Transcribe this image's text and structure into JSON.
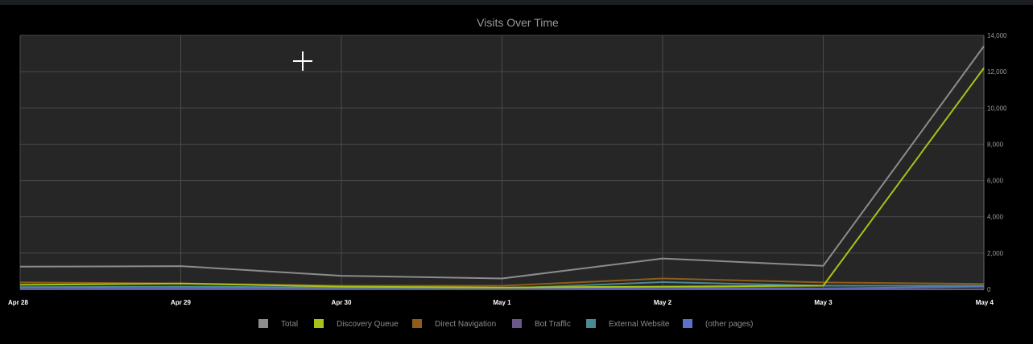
{
  "chart_data": {
    "type": "line",
    "title": "Visits Over Time",
    "xlabel": "",
    "ylabel": "",
    "categories": [
      "Apr 28",
      "Apr 29",
      "Apr 30",
      "May 1",
      "May 2",
      "May 3",
      "May 4"
    ],
    "ylim": [
      0,
      14000
    ],
    "yticks": [
      0,
      2000,
      4000,
      6000,
      8000,
      10000,
      12000,
      14000
    ],
    "ytick_labels": [
      "0",
      "2,000",
      "4,000",
      "6,000",
      "8,000",
      "10,000",
      "12,000",
      "14,000"
    ],
    "y_axis_side": "right",
    "grid": true,
    "legend_position": "bottom",
    "series": [
      {
        "name": "Total",
        "color": "#8c8c8c",
        "values": [
          1250,
          1280,
          750,
          600,
          1700,
          1300,
          13400
        ]
      },
      {
        "name": "Discovery Queue",
        "color": "#a6c319",
        "values": [
          250,
          320,
          150,
          100,
          150,
          200,
          12200
        ]
      },
      {
        "name": "Direct Navigation",
        "color": "#8e5d1a",
        "values": [
          380,
          330,
          200,
          200,
          600,
          380,
          300
        ]
      },
      {
        "name": "Bot Traffic",
        "color": "#6a5888",
        "values": [
          0,
          0,
          0,
          0,
          0,
          0,
          0
        ]
      },
      {
        "name": "External Website",
        "color": "#4a8a94",
        "values": [
          120,
          150,
          100,
          50,
          400,
          200,
          200
        ]
      },
      {
        "name": "(other pages)",
        "color": "#5b6fcb",
        "values": [
          30,
          60,
          40,
          40,
          100,
          50,
          150
        ]
      }
    ]
  },
  "colors": {
    "page_background": "#000000",
    "plot_background": "#262626",
    "gridline": "#4a4a4a"
  }
}
